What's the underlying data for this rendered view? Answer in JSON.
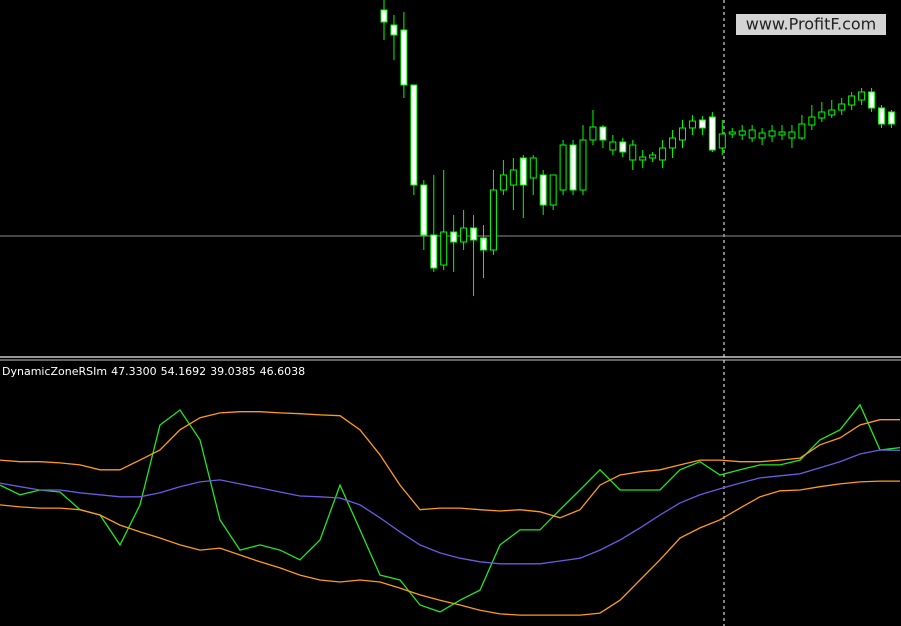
{
  "watermark": "www.ProfitF.com",
  "chart_data": [
    {
      "type": "candlestick",
      "open": [
        345,
        330,
        325,
        270,
        170,
        120,
        90,
        123,
        113,
        127,
        117,
        105,
        165,
        170,
        197,
        177,
        180,
        150,
        165,
        210,
        165,
        215,
        228,
        205,
        213,
        195,
        195,
        197,
        195,
        207,
        215,
        227,
        235,
        238,
        207,
        221,
        220,
        217,
        217,
        219,
        220,
        217,
        217,
        230,
        237,
        240,
        245,
        250,
        255,
        263,
        247,
        243
      ],
      "high": [
        355,
        340,
        343,
        270,
        175,
        180,
        185,
        140,
        145,
        140,
        130,
        185,
        195,
        197,
        200,
        200,
        185,
        180,
        215,
        215,
        230,
        245,
        230,
        220,
        217,
        215,
        205,
        203,
        215,
        225,
        235,
        240,
        239,
        243,
        235,
        227,
        230,
        230,
        227,
        230,
        230,
        230,
        240,
        250,
        253,
        255,
        257,
        263,
        267,
        267,
        250,
        245
      ],
      "low": [
        315,
        295,
        257,
        160,
        105,
        83,
        85,
        83,
        105,
        59,
        77,
        100,
        160,
        145,
        137,
        160,
        140,
        145,
        160,
        160,
        160,
        210,
        207,
        200,
        198,
        185,
        187,
        193,
        187,
        197,
        207,
        220,
        220,
        203,
        200,
        217,
        215,
        213,
        210,
        213,
        215,
        207,
        215,
        225,
        233,
        237,
        240,
        245,
        250,
        243,
        227,
        227
      ],
      "close": [
        333,
        320,
        270,
        170,
        120,
        87,
        123,
        113,
        127,
        115,
        105,
        165,
        180,
        185,
        170,
        197,
        150,
        180,
        210,
        165,
        215,
        228,
        215,
        213,
        203,
        210,
        198,
        200,
        207,
        217,
        227,
        234,
        227,
        205,
        221,
        223,
        224,
        225,
        222,
        224,
        223,
        223,
        231,
        238,
        243,
        245,
        251,
        259,
        263,
        247,
        231,
        231
      ],
      "up_color": "#000000",
      "down_color": "#ffffff",
      "outline": "#00ff00",
      "ylim": [
        0,
        355
      ],
      "hline": 119,
      "hline_color": "#8c8c8c"
    },
    {
      "type": "line",
      "title": "DynamicZoneRSIm",
      "ylim": [
        3.1,
        68.5
      ],
      "series": [
        {
          "color": "#22e622",
          "readout": "47.3300",
          "values": [
            38.0,
            35.6,
            36.8,
            36.3,
            31.9,
            30.6,
            23.2,
            33.1,
            52.9,
            56.6,
            49.2,
            29.4,
            21.9,
            23.2,
            21.9,
            19.5,
            24.4,
            38.0,
            26.9,
            15.7,
            14.5,
            8.3,
            6.6,
            9.5,
            12.0,
            23.2,
            26.9,
            26.9,
            31.9,
            36.8,
            41.8,
            36.8,
            36.8,
            36.8,
            41.8,
            43.8,
            40.5,
            41.8,
            43.0,
            43.0,
            44.2,
            49.2,
            51.7,
            57.9,
            46.7,
            47.3
          ]
        },
        {
          "color": "#ff9a1a",
          "readout": "54.1692",
          "values": [
            44.2,
            43.8,
            43.8,
            43.5,
            43.0,
            41.8,
            41.8,
            44.2,
            46.7,
            51.7,
            54.7,
            55.9,
            56.2,
            56.2,
            55.9,
            55.7,
            55.4,
            55.2,
            51.7,
            45.5,
            38.0,
            31.9,
            32.3,
            32.3,
            31.9,
            31.6,
            31.9,
            31.4,
            29.9,
            31.9,
            38.0,
            40.5,
            41.3,
            41.8,
            43.0,
            44.2,
            44.2,
            43.8,
            43.8,
            44.2,
            44.7,
            48.0,
            49.7,
            52.9,
            54.2,
            54.2
          ]
        },
        {
          "color": "#ff9a1a",
          "readout": "39.0385",
          "values": [
            33.1,
            32.6,
            32.3,
            32.3,
            31.9,
            30.6,
            28.1,
            26.4,
            24.9,
            23.2,
            21.9,
            22.4,
            20.7,
            19.0,
            17.5,
            15.7,
            14.5,
            14.0,
            14.5,
            14.0,
            12.5,
            10.8,
            9.5,
            8.3,
            7.0,
            6.1,
            5.8,
            5.8,
            5.8,
            5.8,
            6.3,
            9.5,
            14.5,
            19.5,
            24.9,
            27.4,
            29.4,
            32.3,
            35.1,
            36.6,
            36.8,
            37.6,
            38.3,
            38.8,
            39.0,
            39.0
          ]
        },
        {
          "color": "#6a5ae0",
          "readout": "46.6038",
          "values": [
            38.5,
            37.6,
            36.8,
            36.8,
            36.1,
            35.6,
            35.1,
            35.1,
            36.1,
            37.6,
            38.8,
            39.3,
            38.3,
            37.3,
            36.3,
            35.3,
            35.1,
            34.8,
            33.1,
            29.9,
            26.4,
            23.2,
            21.2,
            19.9,
            19.0,
            18.5,
            18.5,
            18.5,
            19.2,
            19.9,
            21.9,
            24.4,
            27.4,
            30.6,
            33.6,
            35.6,
            37.1,
            38.5,
            39.8,
            40.3,
            40.8,
            42.3,
            43.8,
            45.7,
            46.7,
            46.6
          ]
        }
      ]
    }
  ]
}
